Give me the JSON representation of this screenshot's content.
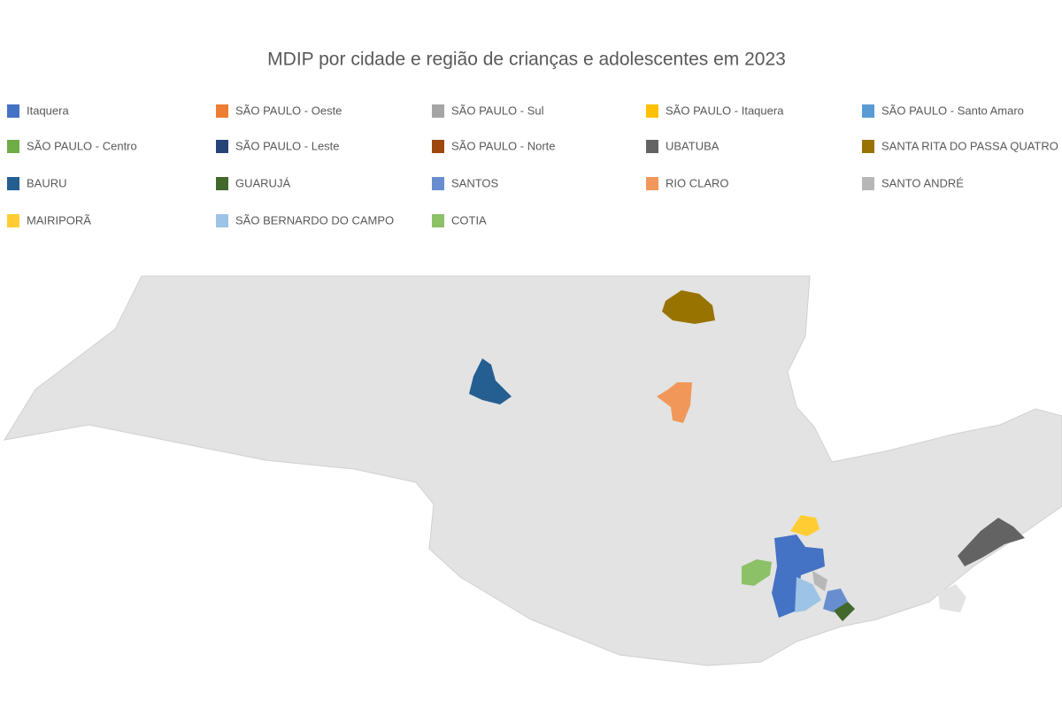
{
  "title": "MDIP por cidade e região de crianças e adolescentes em 2023",
  "legend": [
    {
      "name": "Itaquera",
      "color": "#4472c4"
    },
    {
      "name": "SÃO PAULO - Oeste",
      "color": "#ed7d31"
    },
    {
      "name": "SÃO PAULO - Sul",
      "color": "#a5a5a5"
    },
    {
      "name": "SÃO PAULO - Itaquera",
      "color": "#ffc000"
    },
    {
      "name": "SÃO PAULO - Santo Amaro",
      "color": "#5b9bd5"
    },
    {
      "name": "SÃO PAULO - Centro",
      "color": "#70ad47"
    },
    {
      "name": "SÃO PAULO - Leste",
      "color": "#264478"
    },
    {
      "name": "SÃO PAULO - Norte",
      "color": "#9e480e"
    },
    {
      "name": "UBATUBA",
      "color": "#636363"
    },
    {
      "name": "SANTA RITA DO PASSA QUATRO",
      "color": "#997300"
    },
    {
      "name": "BAURU",
      "color": "#255e91"
    },
    {
      "name": "GUARUJÁ",
      "color": "#43682b"
    },
    {
      "name": "SANTOS",
      "color": "#698ed0"
    },
    {
      "name": "RIO CLARO",
      "color": "#f1975a"
    },
    {
      "name": "SANTO ANDRÉ",
      "color": "#b7b7b7"
    },
    {
      "name": "MAIRIPORÃ",
      "color": "#ffcd33"
    },
    {
      "name": "SÃO BERNARDO DO CAMPO",
      "color": "#9dc3e6"
    },
    {
      "name": "COTIA",
      "color": "#8cc168"
    }
  ]
}
